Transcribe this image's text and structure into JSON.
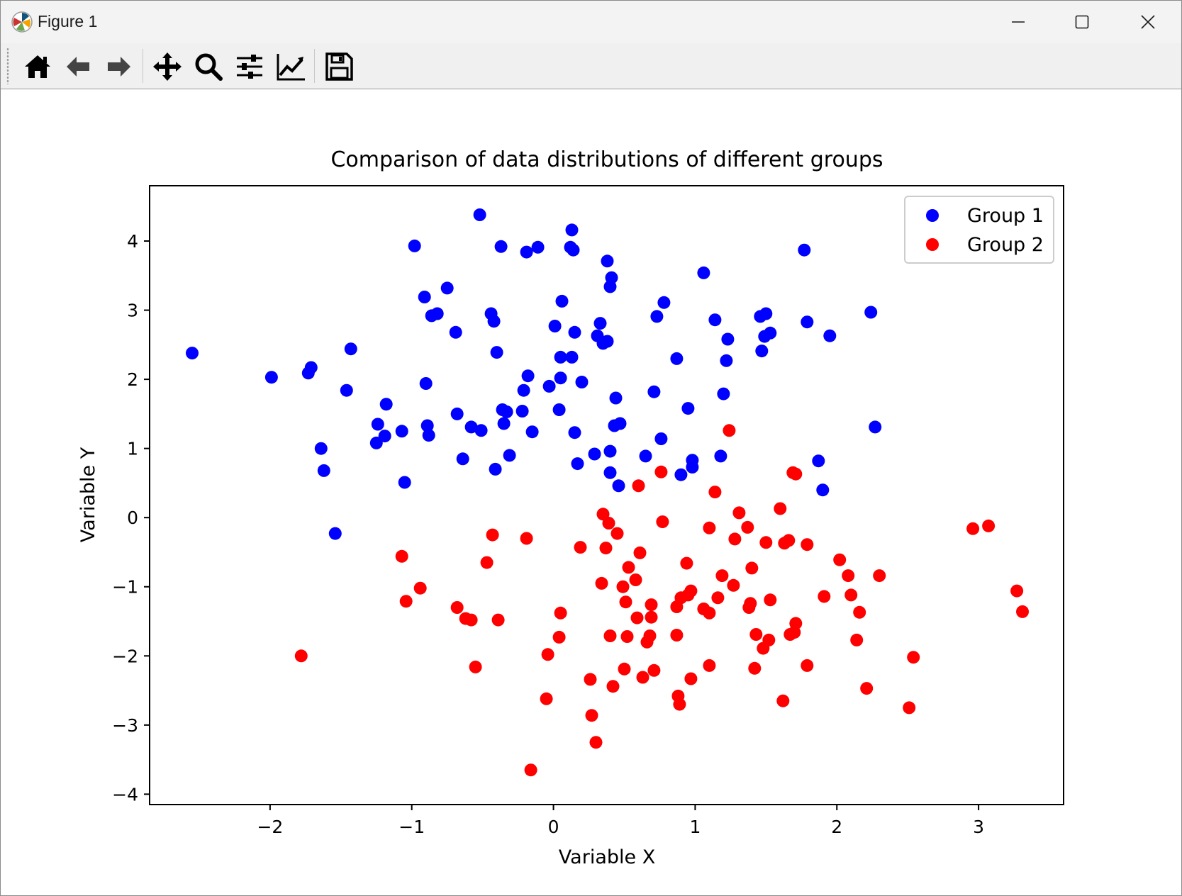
{
  "window": {
    "title": "Figure 1"
  },
  "toolbar": {
    "buttons": [
      {
        "name": "home",
        "icon": "home-icon"
      },
      {
        "name": "back",
        "icon": "arrow-left-icon"
      },
      {
        "name": "forward",
        "icon": "arrow-right-icon"
      },
      {
        "name": "pan",
        "icon": "move-icon"
      },
      {
        "name": "zoom",
        "icon": "magnifier-icon"
      },
      {
        "name": "configure-subplots",
        "icon": "sliders-icon"
      },
      {
        "name": "edit-axis",
        "icon": "line-chart-icon"
      },
      {
        "name": "save",
        "icon": "floppy-disk-icon"
      }
    ]
  },
  "chart_data": {
    "type": "scatter",
    "title": "Comparison of data distributions of different groups",
    "xlabel": "Variable X",
    "ylabel": "Variable Y",
    "xlim": [
      -2.85,
      3.6
    ],
    "ylim": [
      -4.15,
      4.8
    ],
    "xticks": [
      -2,
      -1,
      0,
      1,
      2,
      3
    ],
    "yticks": [
      -4,
      -3,
      -2,
      -1,
      0,
      1,
      2,
      3,
      4
    ],
    "xtick_labels": [
      "−2",
      "−1",
      "0",
      "1",
      "2",
      "3"
    ],
    "ytick_labels": [
      "−4",
      "−3",
      "−2",
      "−1",
      "0",
      "1",
      "2",
      "3",
      "4"
    ],
    "grid": false,
    "legend_position": "top-right",
    "series": [
      {
        "name": "Group 1",
        "color": "#0000ff",
        "points": [
          [
            -2.55,
            2.38
          ],
          [
            -1.99,
            2.03
          ],
          [
            -1.73,
            2.09
          ],
          [
            -1.71,
            2.17
          ],
          [
            -1.64,
            1.0
          ],
          [
            -1.62,
            0.68
          ],
          [
            -1.54,
            -0.23
          ],
          [
            -1.46,
            1.84
          ],
          [
            -1.43,
            2.44
          ],
          [
            -1.25,
            1.08
          ],
          [
            -1.24,
            1.35
          ],
          [
            -1.19,
            1.18
          ],
          [
            -1.18,
            1.64
          ],
          [
            -1.07,
            1.25
          ],
          [
            -1.05,
            0.51
          ],
          [
            -0.98,
            3.93
          ],
          [
            -0.91,
            3.19
          ],
          [
            -0.9,
            1.94
          ],
          [
            -0.89,
            1.33
          ],
          [
            -0.88,
            1.19
          ],
          [
            -0.86,
            2.92
          ],
          [
            -0.82,
            2.95
          ],
          [
            -0.75,
            3.32
          ],
          [
            -0.69,
            2.68
          ],
          [
            -0.68,
            1.5
          ],
          [
            -0.64,
            0.85
          ],
          [
            -0.58,
            1.31
          ],
          [
            -0.52,
            4.38
          ],
          [
            -0.51,
            1.26
          ],
          [
            -0.44,
            2.95
          ],
          [
            -0.42,
            2.84
          ],
          [
            -0.41,
            0.7
          ],
          [
            -0.4,
            2.39
          ],
          [
            -0.37,
            3.92
          ],
          [
            -0.36,
            1.56
          ],
          [
            -0.35,
            1.36
          ],
          [
            -0.33,
            1.53
          ],
          [
            -0.31,
            0.9
          ],
          [
            -0.22,
            1.54
          ],
          [
            -0.21,
            1.84
          ],
          [
            -0.19,
            3.84
          ],
          [
            -0.18,
            2.05
          ],
          [
            -0.15,
            1.24
          ],
          [
            -0.11,
            3.91
          ],
          [
            -0.03,
            1.9
          ],
          [
            0.01,
            2.77
          ],
          [
            0.04,
            1.56
          ],
          [
            0.05,
            2.32
          ],
          [
            0.05,
            2.02
          ],
          [
            0.06,
            3.13
          ],
          [
            0.12,
            3.91
          ],
          [
            0.13,
            4.16
          ],
          [
            0.13,
            2.32
          ],
          [
            0.14,
            3.87
          ],
          [
            0.15,
            1.23
          ],
          [
            0.15,
            2.68
          ],
          [
            0.17,
            0.78
          ],
          [
            0.2,
            1.96
          ],
          [
            0.29,
            0.92
          ],
          [
            0.31,
            2.63
          ],
          [
            0.33,
            2.81
          ],
          [
            0.35,
            2.52
          ],
          [
            0.38,
            2.55
          ],
          [
            0.38,
            3.71
          ],
          [
            0.4,
            3.34
          ],
          [
            0.4,
            0.65
          ],
          [
            0.4,
            0.96
          ],
          [
            0.41,
            3.47
          ],
          [
            0.43,
            1.33
          ],
          [
            0.44,
            1.73
          ],
          [
            0.46,
            0.46
          ],
          [
            0.47,
            1.36
          ],
          [
            0.65,
            0.89
          ],
          [
            0.71,
            1.82
          ],
          [
            0.73,
            2.91
          ],
          [
            0.76,
            1.14
          ],
          [
            0.78,
            3.11
          ],
          [
            0.87,
            2.3
          ],
          [
            0.9,
            0.62
          ],
          [
            0.95,
            1.58
          ],
          [
            0.98,
            0.83
          ],
          [
            0.98,
            0.73
          ],
          [
            1.06,
            3.54
          ],
          [
            1.14,
            2.86
          ],
          [
            1.18,
            0.89
          ],
          [
            1.2,
            1.79
          ],
          [
            1.22,
            2.27
          ],
          [
            1.23,
            2.58
          ],
          [
            1.46,
            2.91
          ],
          [
            1.47,
            2.41
          ],
          [
            1.49,
            2.62
          ],
          [
            1.5,
            2.95
          ],
          [
            1.53,
            2.67
          ],
          [
            1.77,
            3.87
          ],
          [
            1.79,
            2.83
          ],
          [
            1.87,
            0.82
          ],
          [
            1.9,
            0.4
          ],
          [
            1.95,
            2.63
          ],
          [
            2.24,
            2.97
          ],
          [
            2.27,
            1.31
          ]
        ]
      },
      {
        "name": "Group 2",
        "color": "#ff0000",
        "points": [
          [
            -1.78,
            -2.0
          ],
          [
            -1.07,
            -0.56
          ],
          [
            -1.04,
            -1.21
          ],
          [
            -0.94,
            -1.02
          ],
          [
            -0.68,
            -1.3
          ],
          [
            -0.62,
            -1.46
          ],
          [
            -0.58,
            -1.48
          ],
          [
            -0.55,
            -2.16
          ],
          [
            -0.47,
            -0.65
          ],
          [
            -0.43,
            -0.25
          ],
          [
            -0.39,
            -1.48
          ],
          [
            -0.19,
            -0.3
          ],
          [
            -0.16,
            -3.65
          ],
          [
            -0.05,
            -2.62
          ],
          [
            -0.04,
            -1.98
          ],
          [
            0.04,
            -1.73
          ],
          [
            0.05,
            -1.38
          ],
          [
            0.19,
            -0.43
          ],
          [
            0.26,
            -2.34
          ],
          [
            0.27,
            -2.86
          ],
          [
            0.3,
            -3.25
          ],
          [
            0.34,
            -0.95
          ],
          [
            0.35,
            0.05
          ],
          [
            0.37,
            -0.44
          ],
          [
            0.39,
            -0.08
          ],
          [
            0.4,
            -1.71
          ],
          [
            0.42,
            -2.44
          ],
          [
            0.45,
            -0.23
          ],
          [
            0.49,
            -1.0
          ],
          [
            0.5,
            -2.19
          ],
          [
            0.51,
            -1.22
          ],
          [
            0.52,
            -1.72
          ],
          [
            0.53,
            -0.72
          ],
          [
            0.58,
            -0.9
          ],
          [
            0.59,
            -1.45
          ],
          [
            0.6,
            0.46
          ],
          [
            0.61,
            -0.51
          ],
          [
            0.63,
            -2.31
          ],
          [
            0.66,
            -1.8
          ],
          [
            0.68,
            -1.71
          ],
          [
            0.69,
            -1.26
          ],
          [
            0.69,
            -1.44
          ],
          [
            0.71,
            -2.21
          ],
          [
            0.76,
            0.66
          ],
          [
            0.77,
            -0.06
          ],
          [
            0.87,
            -1.7
          ],
          [
            0.87,
            -1.29
          ],
          [
            0.88,
            -2.58
          ],
          [
            0.89,
            -2.7
          ],
          [
            0.9,
            -1.16
          ],
          [
            0.94,
            -0.66
          ],
          [
            0.95,
            -1.12
          ],
          [
            0.97,
            -1.06
          ],
          [
            0.97,
            -2.33
          ],
          [
            1.06,
            -1.32
          ],
          [
            1.1,
            -0.15
          ],
          [
            1.1,
            -1.38
          ],
          [
            1.1,
            -2.14
          ],
          [
            1.14,
            0.37
          ],
          [
            1.16,
            -1.16
          ],
          [
            1.19,
            -0.84
          ],
          [
            1.24,
            1.26
          ],
          [
            1.27,
            -0.98
          ],
          [
            1.28,
            -0.31
          ],
          [
            1.31,
            0.07
          ],
          [
            1.37,
            -0.14
          ],
          [
            1.38,
            -1.3
          ],
          [
            1.39,
            -1.24
          ],
          [
            1.4,
            -0.73
          ],
          [
            1.42,
            -2.18
          ],
          [
            1.43,
            -1.69
          ],
          [
            1.48,
            -1.89
          ],
          [
            1.5,
            -0.36
          ],
          [
            1.52,
            -1.77
          ],
          [
            1.53,
            -1.19
          ],
          [
            1.6,
            0.13
          ],
          [
            1.62,
            -2.65
          ],
          [
            1.63,
            -0.37
          ],
          [
            1.66,
            -0.33
          ],
          [
            1.67,
            -1.69
          ],
          [
            1.69,
            0.65
          ],
          [
            1.7,
            -1.66
          ],
          [
            1.71,
            0.63
          ],
          [
            1.71,
            -1.53
          ],
          [
            1.79,
            -0.39
          ],
          [
            1.79,
            -2.14
          ],
          [
            1.91,
            -1.14
          ],
          [
            2.02,
            -0.61
          ],
          [
            2.08,
            -0.84
          ],
          [
            2.1,
            -1.12
          ],
          [
            2.14,
            -1.77
          ],
          [
            2.16,
            -1.37
          ],
          [
            2.21,
            -2.47
          ],
          [
            2.3,
            -0.84
          ],
          [
            2.51,
            -2.75
          ],
          [
            2.54,
            -2.02
          ],
          [
            2.96,
            -0.16
          ],
          [
            3.07,
            -0.12
          ],
          [
            3.27,
            -1.06
          ],
          [
            3.31,
            -1.36
          ]
        ]
      }
    ]
  }
}
